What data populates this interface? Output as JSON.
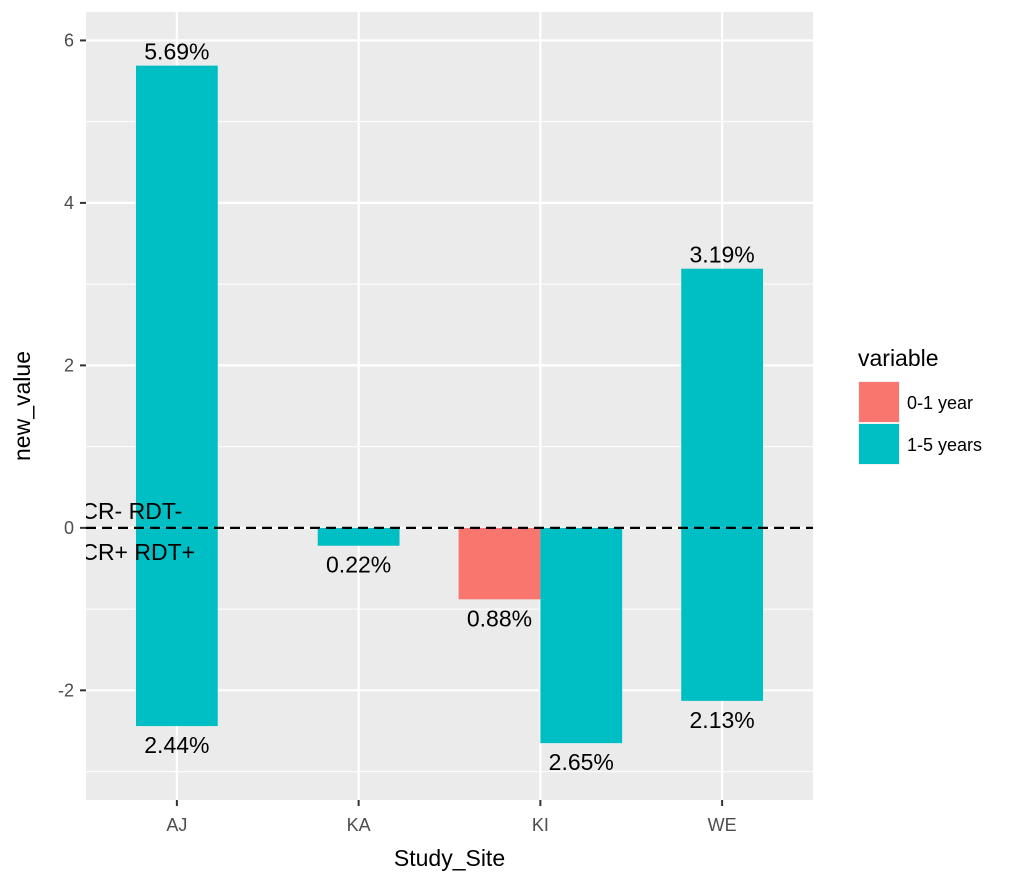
{
  "chart_data": {
    "type": "bar",
    "title": "",
    "xlabel": "Study_Site",
    "ylabel": "new_value",
    "categories": [
      "AJ",
      "KA",
      "KI",
      "WE"
    ],
    "ylim": [
      -3.35,
      6.35
    ],
    "yticks": [
      -2,
      0,
      2,
      4,
      6
    ],
    "ytick_labels": [
      "-2",
      "0",
      "2",
      "4",
      "6"
    ],
    "grid": true,
    "reference_line": {
      "y": 0,
      "style": "dashed"
    },
    "legend": {
      "title": "variable",
      "placement": "right"
    },
    "series": [
      {
        "name": "0-1 year",
        "color": "#F8766D",
        "bars": [
          {
            "category": "KI",
            "value": -0.88,
            "label": "0.88%"
          }
        ]
      },
      {
        "name": "1-5 years",
        "color": "#00BFC4",
        "bars": [
          {
            "category": "AJ",
            "value": 5.69,
            "label": "5.69%"
          },
          {
            "category": "AJ",
            "value": -2.44,
            "label": "2.44%"
          },
          {
            "category": "KA",
            "value": -0.22,
            "label": "0.22%"
          },
          {
            "category": "KI",
            "value": -2.65,
            "label": "2.65%"
          },
          {
            "category": "WE",
            "value": 3.19,
            "label": "3.19%"
          },
          {
            "category": "WE",
            "value": -2.13,
            "label": "2.13%"
          }
        ]
      }
    ],
    "annotations": [
      {
        "text": "PCR- RDT-",
        "position": "above-zero-line"
      },
      {
        "text": "PCR+ RDT+",
        "position": "below-zero-line"
      }
    ]
  }
}
